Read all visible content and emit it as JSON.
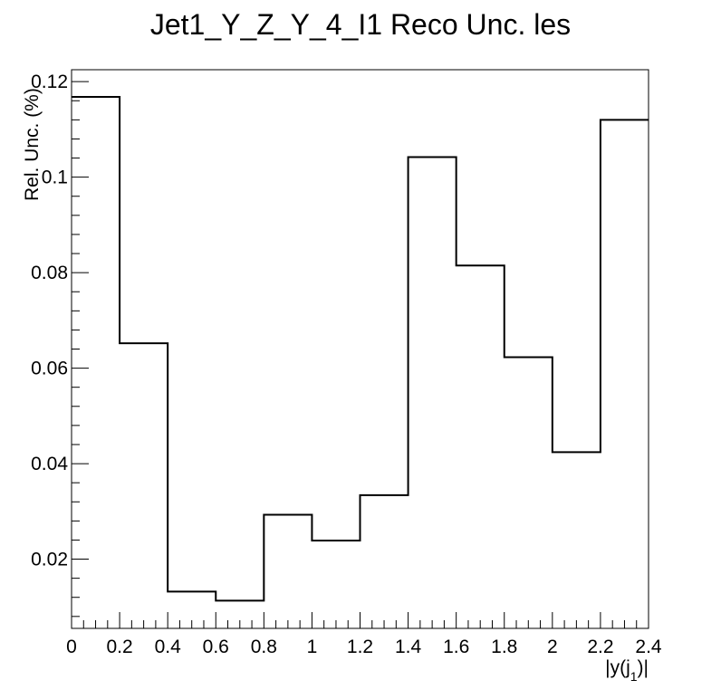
{
  "chart_data": {
    "type": "step-histogram",
    "title": "Jet1_Y_Z_Y_4_I1 Reco Unc. les",
    "xlabel": "|y(j_1)|",
    "ylabel": "Rel. Unc. (%)",
    "xlim": [
      0,
      2.4
    ],
    "ylim": [
      0.0055,
      0.1225
    ],
    "grid": false,
    "x_ticks": [
      0,
      0.2,
      0.4,
      0.6,
      0.8,
      1,
      1.2,
      1.4,
      1.6,
      1.8,
      2,
      2.2,
      2.4
    ],
    "x_tick_labels": [
      "0",
      "0.2",
      "0.4",
      "0.6",
      "0.8",
      "1",
      "1.2",
      "1.4",
      "1.6",
      "1.8",
      "2",
      "2.2",
      "2.4"
    ],
    "y_ticks": [
      0.02,
      0.04,
      0.06,
      0.08,
      0.1,
      0.12
    ],
    "y_tick_labels": [
      "0.02",
      "0.04",
      "0.06",
      "0.08",
      "0.1",
      "0.12"
    ],
    "bin_edges": [
      0,
      0.2,
      0.4,
      0.6,
      0.8,
      1.0,
      1.2,
      1.4,
      1.6,
      1.8,
      2.0,
      2.2,
      2.4
    ],
    "values": [
      0.1168,
      0.0652,
      0.0132,
      0.0113,
      0.0293,
      0.0239,
      0.0334,
      0.1042,
      0.0815,
      0.0623,
      0.0424,
      0.112
    ],
    "line_color": "#000000"
  }
}
